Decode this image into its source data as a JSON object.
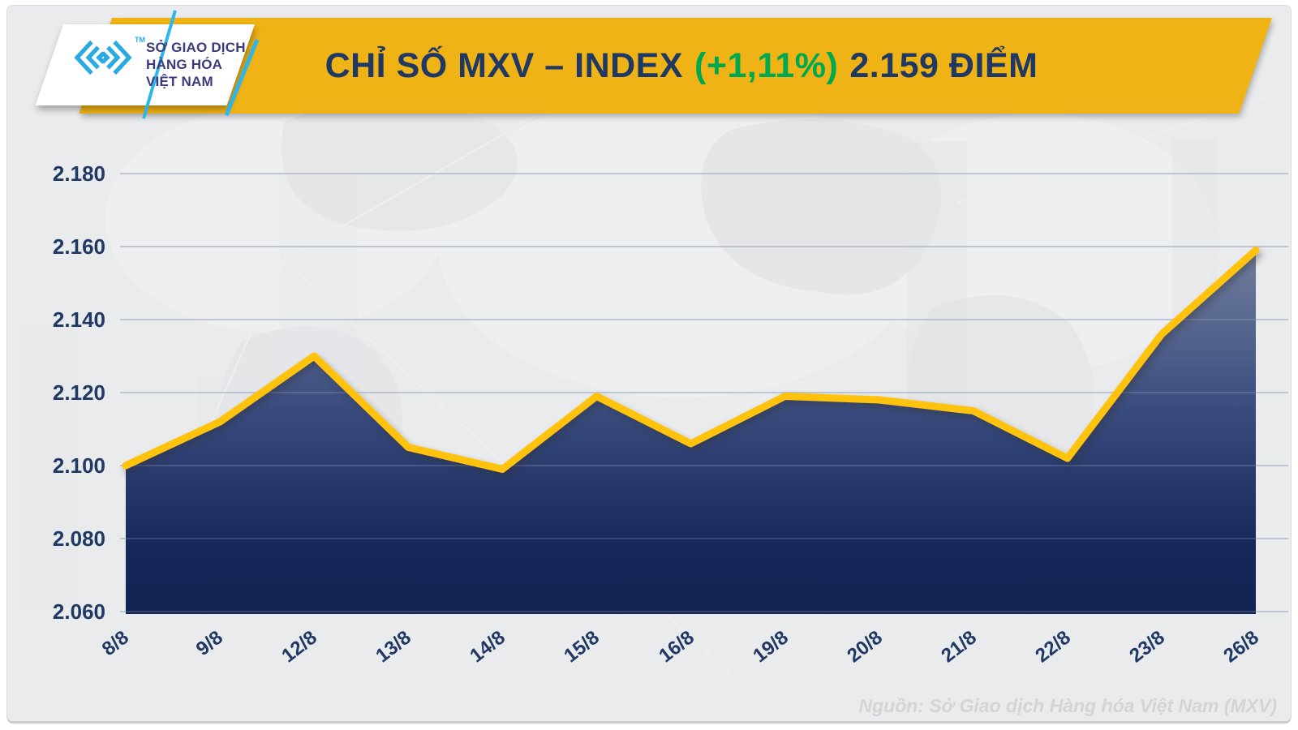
{
  "page": {
    "background": "#EAEBED",
    "frame": "#FFFFFF"
  },
  "header": {
    "banner_color": "#F0B315",
    "logo": {
      "tm": "TM",
      "line1": "SỞ GIAO DỊCH",
      "line2": "HÀNG HÓA",
      "line3": "VIỆT NAM",
      "mark_color": "#29ABE2",
      "text_color": "#3B3A7E"
    },
    "title": {
      "part1": "CHỈ SỐ MXV – INDEX",
      "part2": "(+1,11%)",
      "part3": "2.159 ĐIỂM",
      "navy": "#1F3864",
      "green": "#00A94F"
    }
  },
  "chart_data": {
    "type": "area",
    "title": "CHỈ SỐ MXV – INDEX (+1,11%) 2.159 ĐIỂM",
    "change_percent": "+1,11%",
    "latest_value": 2159,
    "categories": [
      "8/8",
      "9/8",
      "12/8",
      "13/8",
      "14/8",
      "15/8",
      "16/8",
      "19/8",
      "20/8",
      "21/8",
      "22/8",
      "23/8",
      "26/8"
    ],
    "values": [
      2100,
      2112,
      2130,
      2105,
      2099,
      2119,
      2106,
      2119,
      2118,
      2115,
      2102,
      2136,
      2159
    ],
    "y_ticks": [
      "2.180",
      "2.160",
      "2.140",
      "2.120",
      "2.100",
      "2.080",
      "2.060"
    ],
    "y_tick_values": [
      2180,
      2160,
      2140,
      2120,
      2100,
      2080,
      2060
    ],
    "ylim": [
      2060,
      2186
    ],
    "xlabel": "",
    "ylabel": "",
    "grid": "horizontal",
    "legend": "none",
    "line_color": "#FFC20E",
    "area_gradient_top": "#74819F",
    "area_gradient_mid": "#3A4C7E",
    "area_gradient_bottom": "#122450",
    "grid_color": "#AEB9CC",
    "tick_color": "#1F3864"
  },
  "footer": {
    "source": "Nguồn: Sở Giao dịch Hàng hóa Việt Nam (MXV)",
    "color": "#D2D4D7"
  }
}
